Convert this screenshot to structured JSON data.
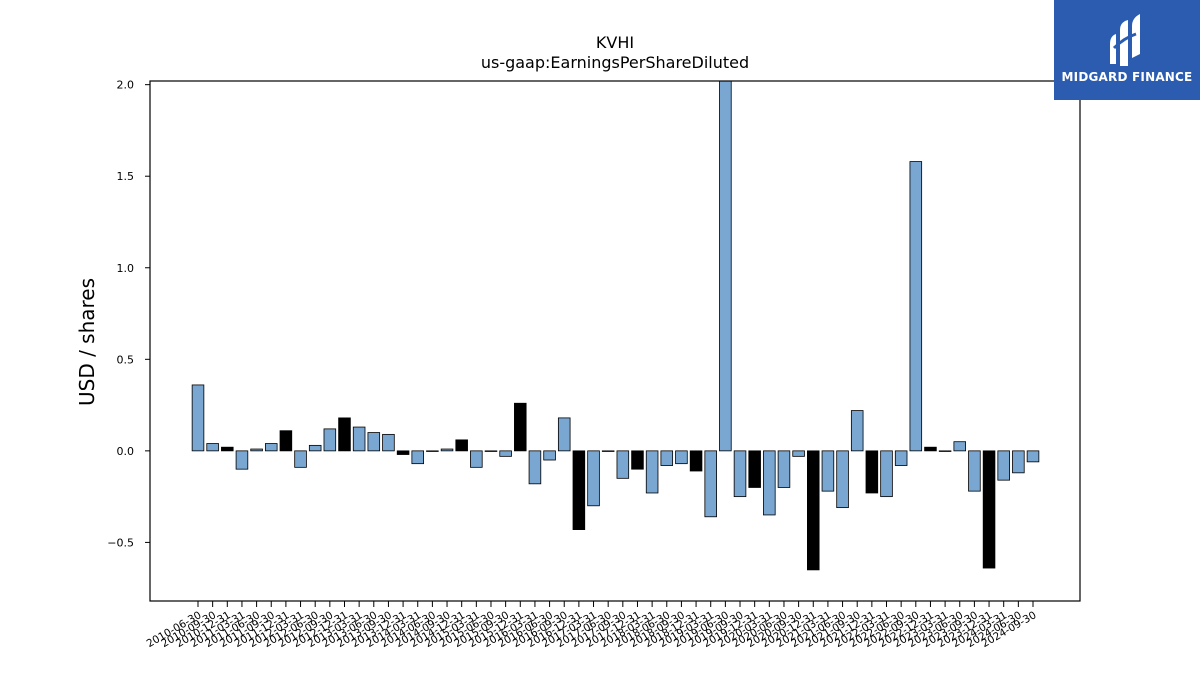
{
  "chart_data": {
    "type": "bar",
    "title": "KVHI",
    "subtitle": "us-gaap:EarningsPerShareDiluted",
    "ylabel": "USD / shares",
    "xlabel": "",
    "ylim": [
      -0.82,
      2.02
    ],
    "yticks": [
      -0.5,
      0.0,
      0.5,
      1.0,
      1.5,
      2.0
    ],
    "ytick_labels": [
      "−0.5",
      "0.0",
      "0.5",
      "1.0",
      "1.5",
      "2.0"
    ],
    "grid": false,
    "legend": "none",
    "colors": {
      "blue": "#79a7d1",
      "black": "#000000",
      "edge": "#000000"
    },
    "categories": [
      "2010-06-30",
      "2010-09-30",
      "2010-12-31",
      "2011-03-31",
      "2011-06-30",
      "2011-09-30",
      "2011-12-31",
      "2012-03-31",
      "2012-06-30",
      "2012-09-30",
      "2012-12-31",
      "2013-03-31",
      "2013-06-30",
      "2013-09-30",
      "2013-12-31",
      "2014-03-31",
      "2014-06-30",
      "2014-09-30",
      "2014-12-31",
      "2015-03-31",
      "2015-06-30",
      "2015-09-30",
      "2015-12-31",
      "2016-03-31",
      "2016-06-30",
      "2016-09-30",
      "2016-12-31",
      "2017-03-31",
      "2017-06-30",
      "2017-09-30",
      "2017-12-31",
      "2018-03-31",
      "2018-06-30",
      "2018-09-30",
      "2018-12-31",
      "2019-03-31",
      "2019-06-30",
      "2019-09-30",
      "2019-12-31",
      "2020-03-31",
      "2020-06-30",
      "2020-09-30",
      "2020-12-31",
      "2021-03-31",
      "2021-06-30",
      "2021-09-30",
      "2021-12-31",
      "2022-03-31",
      "2022-06-30",
      "2022-09-30",
      "2022-12-31",
      "2023-03-31",
      "2023-06-30",
      "2023-09-30",
      "2023-12-31",
      "2024-03-31",
      "2024-06-30",
      "2024-09-30"
    ],
    "values": [
      0.36,
      0.04,
      0.02,
      -0.1,
      0.01,
      0.04,
      0.11,
      -0.09,
      0.03,
      0.12,
      0.18,
      0.13,
      0.1,
      0.09,
      -0.02,
      -0.07,
      0.0,
      0.01,
      0.06,
      -0.09,
      0.0,
      -0.03,
      0.26,
      -0.18,
      -0.05,
      0.18,
      -0.43,
      -0.3,
      0.0,
      -0.15,
      -0.1,
      -0.23,
      -0.08,
      -0.07,
      -0.11,
      -0.36,
      2.05,
      -0.25,
      -0.2,
      -0.35,
      -0.2,
      -0.03,
      -0.65,
      -0.22,
      -0.31,
      0.22,
      -0.23,
      -0.25,
      -0.08,
      1.58,
      0.02,
      0.0,
      0.05,
      -0.22,
      -0.64,
      -0.16,
      -0.12,
      -0.06
    ],
    "bar_colors": [
      "blue",
      "blue",
      "black",
      "blue",
      "blue",
      "blue",
      "black",
      "blue",
      "blue",
      "blue",
      "black",
      "blue",
      "blue",
      "blue",
      "black",
      "blue",
      "blue",
      "blue",
      "black",
      "blue",
      "blue",
      "blue",
      "black",
      "blue",
      "blue",
      "blue",
      "black",
      "blue",
      "blue",
      "blue",
      "black",
      "blue",
      "blue",
      "blue",
      "black",
      "blue",
      "blue",
      "blue",
      "black",
      "blue",
      "blue",
      "blue",
      "black",
      "blue",
      "blue",
      "blue",
      "black",
      "blue",
      "blue",
      "blue",
      "black",
      "blue",
      "blue",
      "blue",
      "black",
      "blue",
      "blue",
      "blue"
    ]
  },
  "logo": {
    "text": "MIDGARD FINANCE"
  }
}
